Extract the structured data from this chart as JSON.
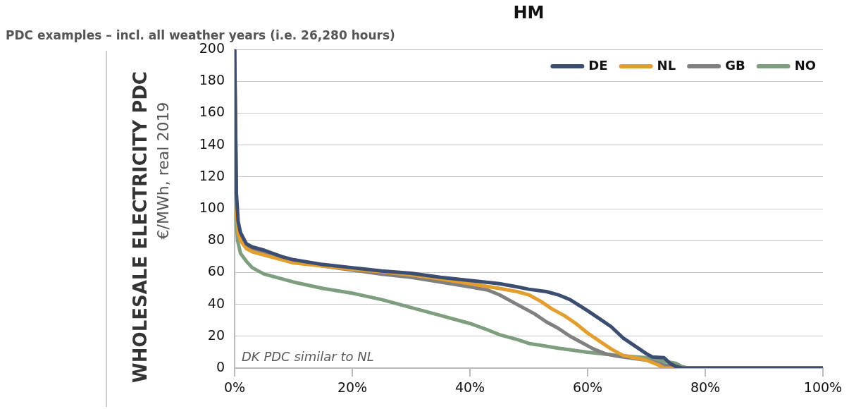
{
  "chart_data": {
    "type": "line",
    "title": "HM",
    "subtitle": "PDC examples – incl. all weather years (i.e. 26,280 hours)",
    "ylabel": "WHOLESALE ELECTRICITY PDC\n€/MWh, real 2019",
    "annotations": [
      "DK PDC similar to NL"
    ],
    "xlim": [
      0,
      100
    ],
    "xticks": [
      {
        "value": 0,
        "label": "0%"
      },
      {
        "value": 20,
        "label": "20%"
      },
      {
        "value": 40,
        "label": "40%"
      },
      {
        "value": 60,
        "label": "60%"
      },
      {
        "value": 80,
        "label": "80%"
      },
      {
        "value": 100,
        "label": "100%"
      }
    ],
    "ylim": [
      0,
      200
    ],
    "yticks": [
      0,
      20,
      40,
      60,
      80,
      100,
      120,
      140,
      160,
      180,
      200
    ],
    "grid": "y",
    "legend": "top right",
    "marker": "none",
    "line_style": "solid",
    "series": [
      {
        "name": "DE",
        "color": "#3b4e72",
        "x": [
          0,
          0.3,
          0.6,
          1,
          2,
          3,
          5,
          8,
          10,
          15,
          20,
          25,
          30,
          35,
          40,
          45,
          48,
          50,
          53,
          55,
          57,
          60,
          62,
          64,
          66,
          68,
          70,
          71,
          73,
          74,
          75,
          76,
          100
        ],
        "values": [
          200,
          110,
          92,
          85,
          78,
          76,
          74,
          70,
          68,
          65,
          63,
          61,
          59.5,
          57,
          55,
          53,
          51,
          49.5,
          48,
          46,
          43,
          36,
          31,
          26,
          19,
          14,
          9,
          7,
          6.5,
          3,
          1,
          0,
          0
        ]
      },
      {
        "name": "NL",
        "color": "#e39e30",
        "x": [
          0,
          0.3,
          0.6,
          1,
          2,
          3,
          5,
          10,
          15,
          20,
          25,
          30,
          35,
          40,
          45,
          48,
          50,
          52,
          54,
          56,
          58,
          60,
          62,
          64,
          66,
          68,
          70,
          72,
          73,
          100
        ],
        "values": [
          200,
          100,
          85,
          80,
          75,
          73,
          71,
          66,
          64,
          62,
          60.5,
          58.5,
          56,
          53,
          50,
          48,
          46,
          42,
          37,
          33,
          28,
          22,
          17,
          12,
          8,
          6.5,
          5,
          2,
          0,
          0
        ]
      },
      {
        "name": "GB",
        "color": "#808080",
        "x": [
          0,
          0.3,
          0.6,
          1,
          2,
          3,
          5,
          10,
          15,
          20,
          25,
          30,
          35,
          40,
          43,
          45,
          47,
          49,
          51,
          53,
          55,
          57,
          58,
          61,
          63,
          65,
          70,
          73,
          76,
          100
        ],
        "values": [
          200,
          105,
          88,
          82,
          77,
          75,
          72,
          67,
          64,
          61.5,
          59,
          57,
          54,
          51,
          49,
          46,
          42,
          38,
          34,
          29,
          25,
          20,
          18,
          12,
          9,
          7.5,
          5,
          2,
          0,
          0
        ]
      },
      {
        "name": "NO",
        "color": "#7f9e7f",
        "x": [
          0,
          0.2,
          0.5,
          1,
          2,
          3,
          5,
          8,
          10,
          15,
          20,
          25,
          30,
          35,
          40,
          43,
          45,
          48,
          50,
          55,
          60,
          65,
          70,
          72,
          75,
          76,
          77,
          100
        ],
        "values": [
          180,
          100,
          80,
          72,
          67,
          63,
          59,
          56,
          54,
          50,
          47,
          43,
          38,
          33,
          28,
          24,
          21,
          18,
          15.5,
          12.5,
          10,
          8,
          6.5,
          5,
          3,
          1,
          0,
          0
        ]
      }
    ]
  }
}
